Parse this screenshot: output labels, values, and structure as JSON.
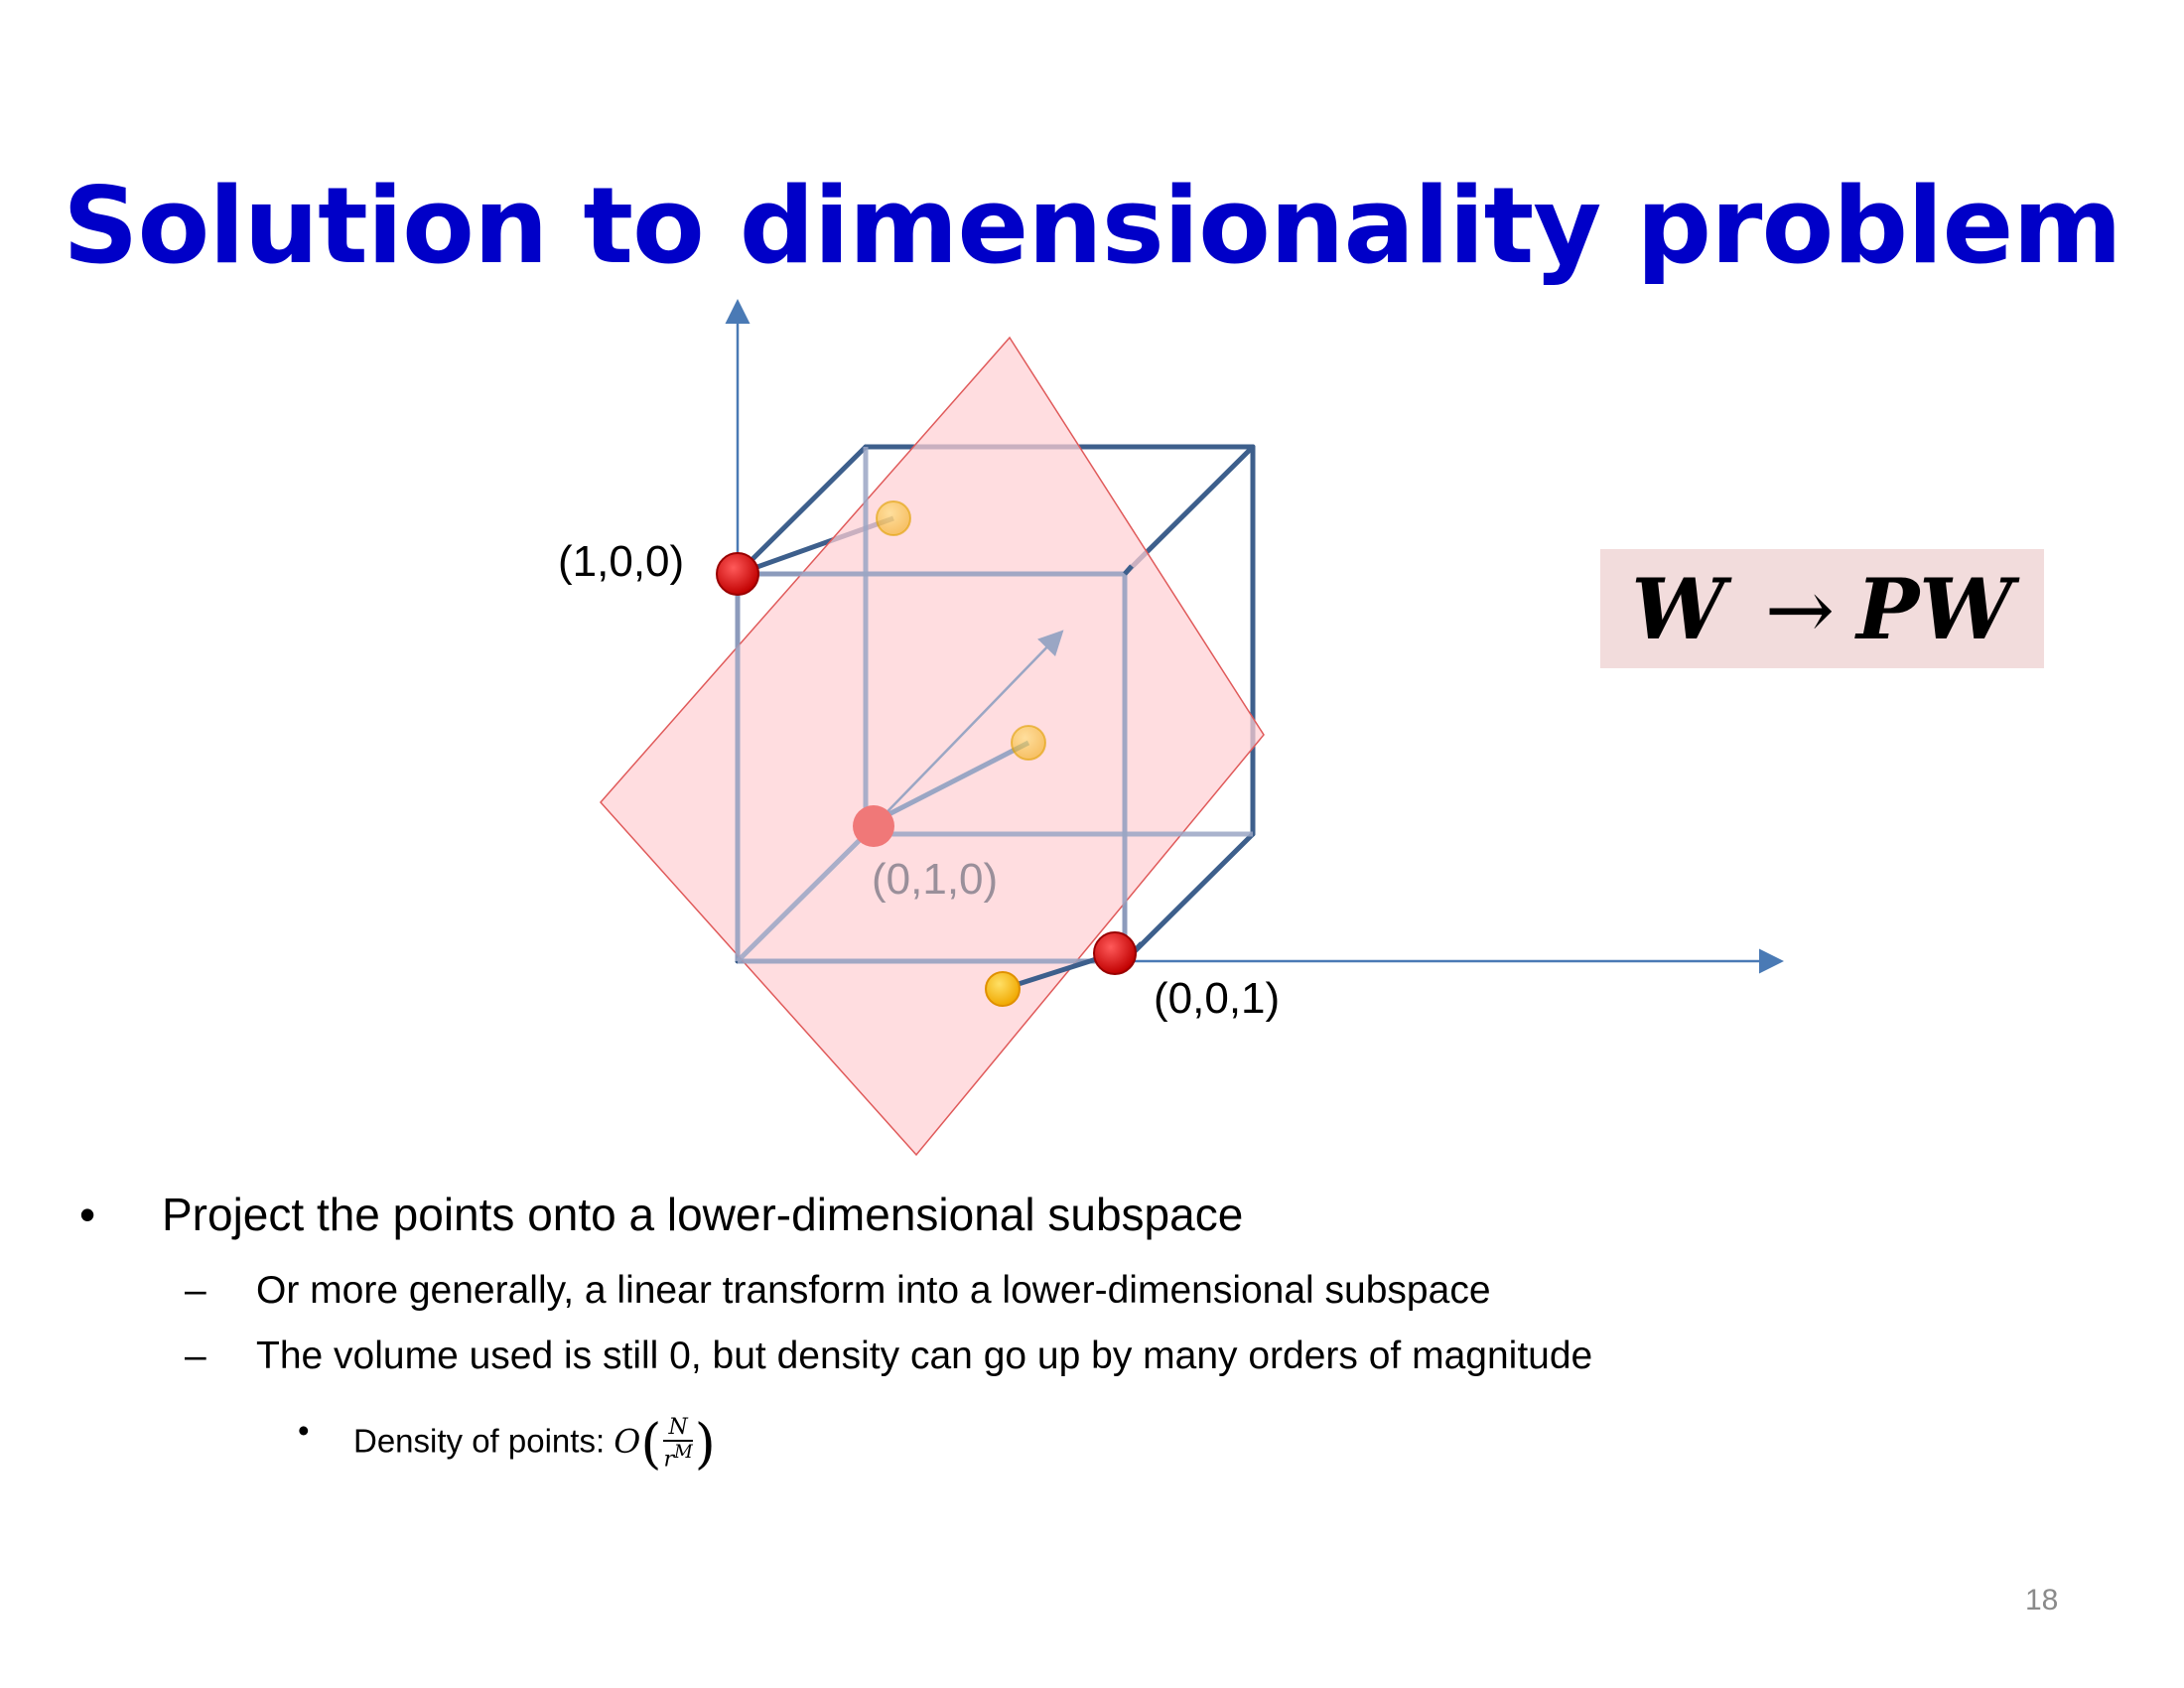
{
  "slide": {
    "title": "Solution to dimensionality problem",
    "page_number": "18"
  },
  "diagram": {
    "labels": {
      "p100": "(1,0,0)",
      "p010": "(0,1,0)",
      "p001": "(0,0,1)"
    },
    "colors": {
      "axis": "#4a7ab5",
      "cube_edge": "#3d5f8c",
      "plane_fill": "#ffd0d4",
      "plane_edge": "#e05a5a",
      "vertex_point": "#dd0000",
      "projected_point": "#ffc000",
      "title": "#0000c8"
    }
  },
  "formula": {
    "left": "W",
    "arrow": "→",
    "right": "PW"
  },
  "bullets": {
    "main": "Project the points onto a lower-dimensional subspace",
    "sub1": "Or more generally, a linear transform into a lower-dimensional subspace",
    "sub2": "The volume used is still 0, but density can go up by many orders of magnitude",
    "density_label": "Density of points:",
    "density_O": "O",
    "density_num": "N",
    "density_den_base": "r",
    "density_den_exp": "M",
    "bullet_glyph": "•",
    "dash_glyph": "–"
  }
}
